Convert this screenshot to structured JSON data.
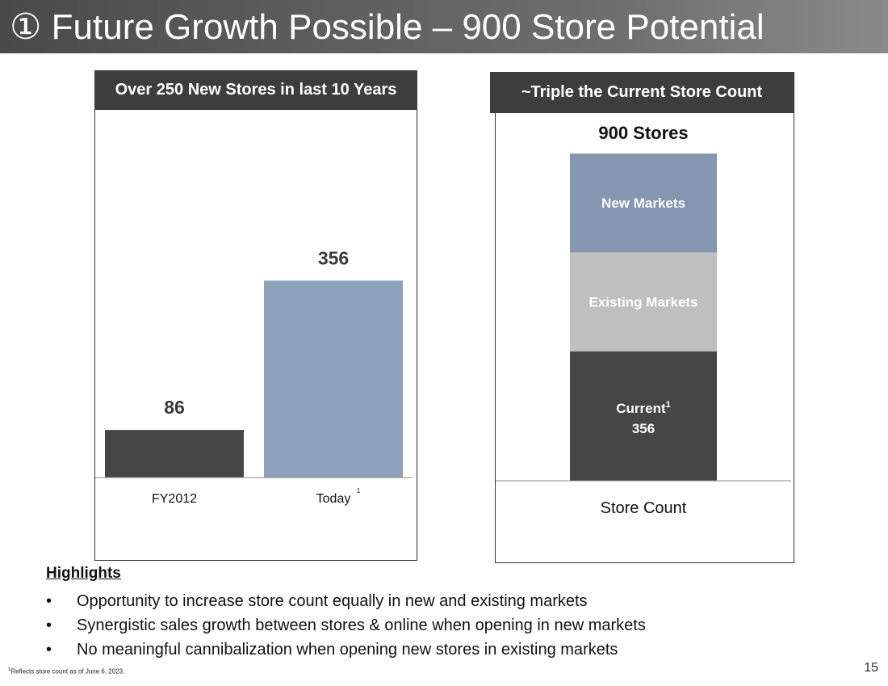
{
  "slide": {
    "title": "① Future Growth Possible – 900 Store Potential",
    "page_number": "15",
    "footnote_marker": "1",
    "footnote_text": "Reflects store count as of June 6, 2023."
  },
  "colors": {
    "dark_bar": "#464646",
    "light_blue_bar": "#8da2ba",
    "new_markets": "#8496b0",
    "existing_markets": "#bfbfbf",
    "current": "#464646"
  },
  "highlights": {
    "title": "Highlights",
    "bullet_glyph": "•",
    "items": [
      "Opportunity to increase store count equally in new and existing markets",
      "Synergistic sales growth between stores & online when opening in new markets",
      "No meaningful cannibalization when opening new stores in existing markets"
    ]
  },
  "chart_data": [
    {
      "type": "bar",
      "title": "Over 250 New Stores in last 10 Years",
      "categories": [
        "FY2012",
        "Today"
      ],
      "category_superscripts": [
        "",
        "1"
      ],
      "values": [
        86,
        356
      ],
      "data_labels": [
        "86",
        "356"
      ],
      "ylim": [
        0,
        650
      ],
      "xlabel": "",
      "ylabel": ""
    },
    {
      "type": "bar",
      "stacked": true,
      "title": "~Triple the Current Store Count",
      "total_label": "900 Stores",
      "categories": [
        "Store Count"
      ],
      "ylim": [
        0,
        900
      ],
      "series": [
        {
          "name": "Current",
          "superscript": "1",
          "value_label": "356",
          "values": [
            356
          ]
        },
        {
          "name": "Existing Markets",
          "values": [
            272
          ]
        },
        {
          "name": "New Markets",
          "values": [
            272
          ]
        }
      ]
    }
  ]
}
